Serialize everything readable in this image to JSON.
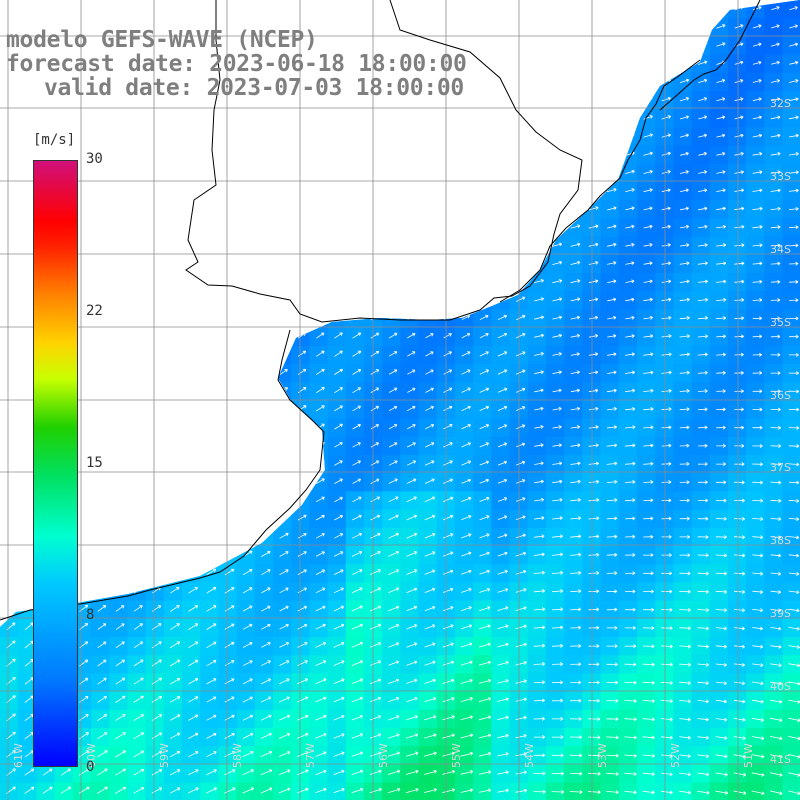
{
  "title": {
    "line1": "modelo GEFS-WAVE (NCEP)",
    "line2": "forecast date: 2023-06-18 18:00:00",
    "line3": "valid date: 2023-07-03 18:00:00"
  },
  "colorbar": {
    "unit": "[m/s]",
    "min": 0,
    "max": 30,
    "ticks": [
      "30",
      "22",
      "15",
      "8",
      "0"
    ],
    "tick_values": [
      30,
      22,
      15,
      8,
      0
    ]
  },
  "map": {
    "lon_labels": [
      "61W",
      "60W",
      "59W",
      "58W",
      "57W",
      "56W",
      "55W",
      "54W",
      "53W",
      "52W",
      "51W"
    ],
    "lat_labels": [
      "32S",
      "33S",
      "34S",
      "35S",
      "36S",
      "37S",
      "38S",
      "39S",
      "40S",
      "41S"
    ],
    "colors": {
      "land": "#ffffff",
      "coast": "#000000",
      "grid": "#808080",
      "ocean_low": "#0028ff",
      "ocean_mid": "#00aaff",
      "ocean_high": "#00ffc0",
      "arrow": "#ffffff"
    }
  }
}
